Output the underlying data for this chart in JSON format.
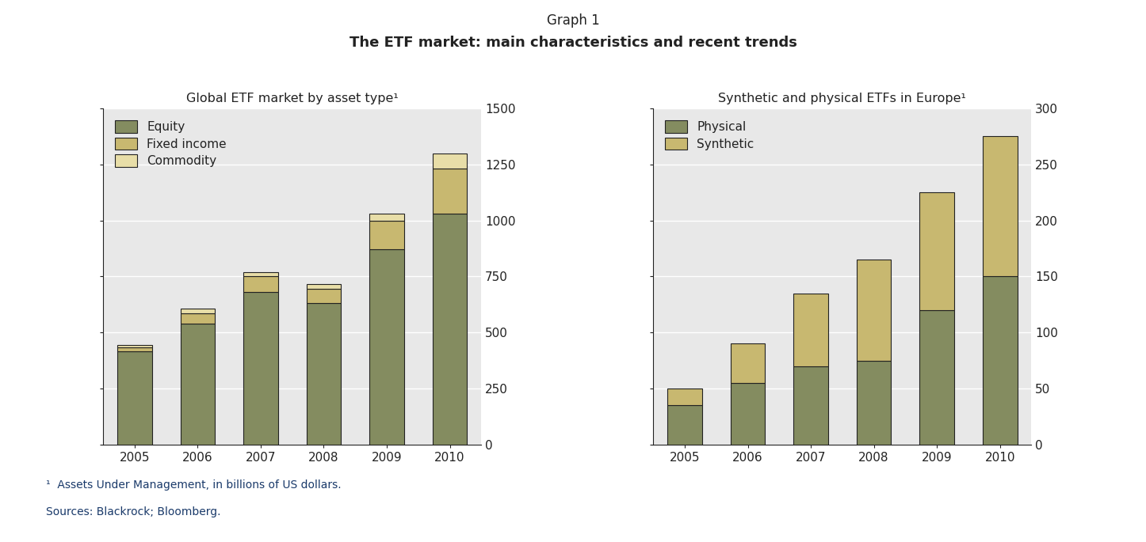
{
  "title_graph": "Graph 1",
  "title_main": "The ETF market: main characteristics and recent trends",
  "left_chart": {
    "title": "Global ETF market by asset type¹",
    "years": [
      "2005",
      "2006",
      "2007",
      "2008",
      "2009",
      "2010"
    ],
    "equity": [
      415,
      540,
      680,
      630,
      870,
      1030
    ],
    "fixed_income": [
      20,
      45,
      70,
      65,
      130,
      200
    ],
    "commodity": [
      8,
      20,
      20,
      20,
      30,
      70
    ],
    "colors": {
      "equity": "#848c60",
      "fixed_income": "#c8b870",
      "commodity": "#e8dea8"
    },
    "ylim": [
      0,
      1500
    ],
    "yticks": [
      0,
      250,
      500,
      750,
      1000,
      1250,
      1500
    ],
    "legend_labels": [
      "Equity",
      "Fixed income",
      "Commodity"
    ]
  },
  "right_chart": {
    "title": "Synthetic and physical ETFs in Europe¹",
    "years": [
      "2005",
      "2006",
      "2007",
      "2008",
      "2009",
      "2010"
    ],
    "physical": [
      35,
      55,
      70,
      75,
      120,
      150
    ],
    "synthetic": [
      15,
      35,
      65,
      90,
      105,
      125
    ],
    "colors": {
      "physical": "#848c60",
      "synthetic": "#c8b870"
    },
    "ylim": [
      0,
      300
    ],
    "yticks": [
      0,
      50,
      100,
      150,
      200,
      250,
      300
    ],
    "legend_labels": [
      "Physical",
      "Synthetic"
    ]
  },
  "footnote1": "¹  Assets Under Management, in billions of US dollars.",
  "footnote2": "Sources: Blackrock; Bloomberg.",
  "bg_color": "#e8e8e8",
  "bar_edge_color": "#222222",
  "bar_width": 0.55,
  "fig_bg": "#FFFFFF",
  "text_color": "#1a3a6a",
  "title_color": "#222222"
}
